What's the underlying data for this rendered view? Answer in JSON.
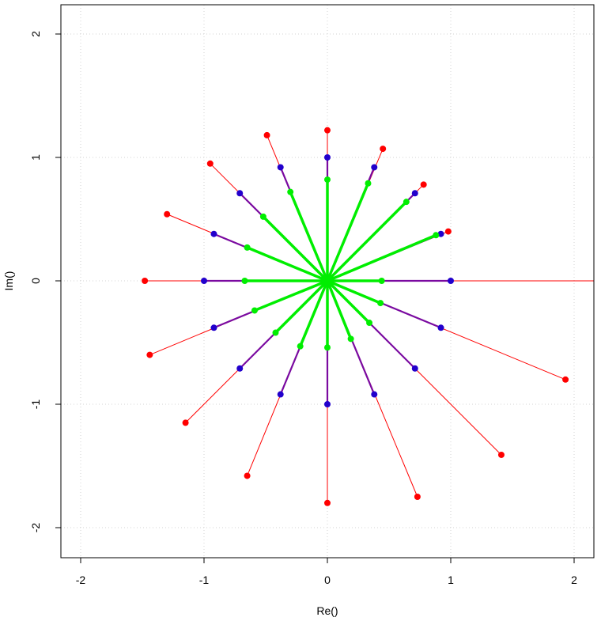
{
  "chart_data": {
    "type": "scatter",
    "xlabel": "Re()",
    "ylabel": "Im()",
    "xlim": [
      -2.2,
      2.2
    ],
    "ylim": [
      -2.25,
      2.25
    ],
    "xticks": [
      -2,
      -1,
      0,
      1,
      2
    ],
    "yticks": [
      -2,
      -1,
      0,
      1,
      2
    ],
    "x_tick_labels": [
      "-2",
      "-1",
      "0",
      "1",
      "2"
    ],
    "y_tick_labels": [
      "-2",
      "-1",
      "0",
      "1",
      "2"
    ],
    "grid": true,
    "origin": [
      0,
      0
    ],
    "colors": {
      "red": "#ff0000",
      "blue": "#2200cc",
      "purple": "#7a0aa0",
      "green": "#00ee00",
      "grid": "#d3d3d3"
    },
    "series": [
      {
        "color": "#ff0000",
        "points": [
          {
            "x": 0.0,
            "y": 1.22
          },
          {
            "x": 0.45,
            "y": 1.07
          },
          {
            "x": 0.78,
            "y": 0.78
          },
          {
            "x": 0.98,
            "y": 0.4
          },
          {
            "x": 2.4,
            "y": 0.0
          },
          {
            "x": 1.93,
            "y": -0.8
          },
          {
            "x": 1.41,
            "y": -1.41
          },
          {
            "x": 0.73,
            "y": -1.75
          },
          {
            "x": 0.0,
            "y": -1.8
          },
          {
            "x": -0.65,
            "y": -1.58
          },
          {
            "x": -1.15,
            "y": -1.15
          },
          {
            "x": -1.44,
            "y": -0.6
          },
          {
            "x": -1.48,
            "y": 0.0
          },
          {
            "x": -1.3,
            "y": 0.54
          },
          {
            "x": -0.95,
            "y": 0.95
          },
          {
            "x": -0.49,
            "y": 1.18
          }
        ]
      },
      {
        "color": "#2200cc",
        "points": [
          {
            "x": 0.0,
            "y": 1.0
          },
          {
            "x": 0.38,
            "y": 0.92
          },
          {
            "x": 0.71,
            "y": 0.71
          },
          {
            "x": 0.92,
            "y": 0.38
          },
          {
            "x": 1.0,
            "y": 0.0
          },
          {
            "x": 0.92,
            "y": -0.38
          },
          {
            "x": 0.71,
            "y": -0.71
          },
          {
            "x": 0.38,
            "y": -0.92
          },
          {
            "x": 0.0,
            "y": -1.0
          },
          {
            "x": -0.38,
            "y": -0.92
          },
          {
            "x": -0.71,
            "y": -0.71
          },
          {
            "x": -0.92,
            "y": -0.38
          },
          {
            "x": -1.0,
            "y": 0.0
          },
          {
            "x": -0.92,
            "y": 0.38
          },
          {
            "x": -0.71,
            "y": 0.71
          },
          {
            "x": -0.38,
            "y": 0.92
          }
        ]
      },
      {
        "color": "#00ee00",
        "points": [
          {
            "x": 0.0,
            "y": 0.82
          },
          {
            "x": 0.33,
            "y": 0.79
          },
          {
            "x": 0.64,
            "y": 0.64
          },
          {
            "x": 0.88,
            "y": 0.37
          },
          {
            "x": 0.44,
            "y": 0.0
          },
          {
            "x": 0.43,
            "y": -0.18
          },
          {
            "x": 0.34,
            "y": -0.34
          },
          {
            "x": 0.19,
            "y": -0.47
          },
          {
            "x": 0.0,
            "y": -0.54
          },
          {
            "x": -0.22,
            "y": -0.53
          },
          {
            "x": -0.42,
            "y": -0.42
          },
          {
            "x": -0.59,
            "y": -0.24
          },
          {
            "x": -0.67,
            "y": 0.0
          },
          {
            "x": -0.65,
            "y": 0.27
          },
          {
            "x": -0.52,
            "y": 0.52
          },
          {
            "x": -0.3,
            "y": 0.72
          }
        ]
      }
    ]
  }
}
